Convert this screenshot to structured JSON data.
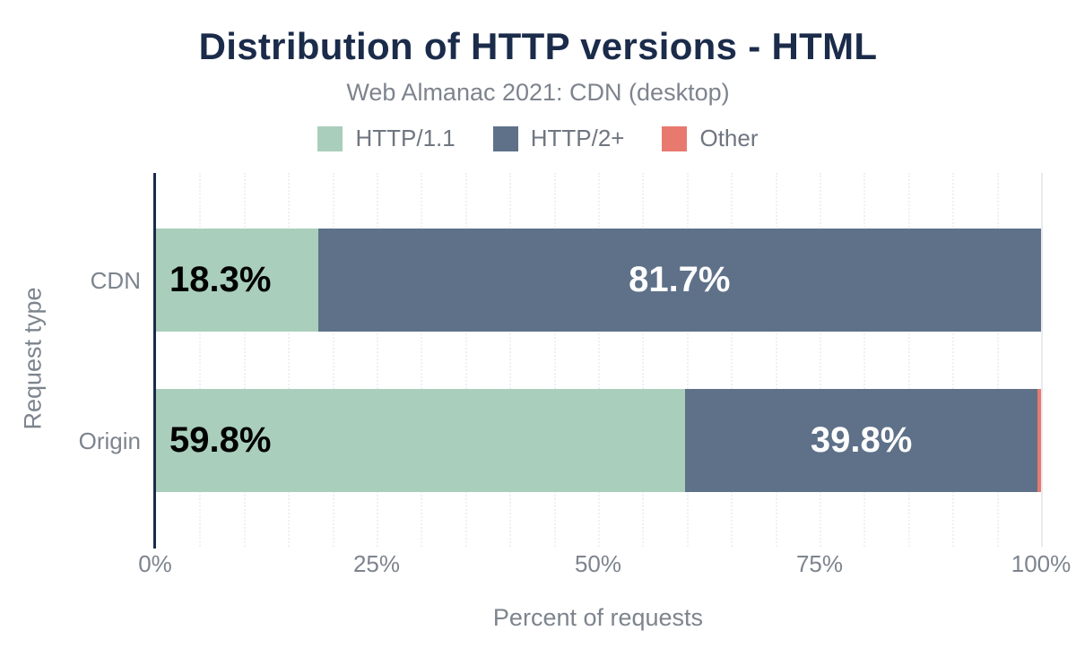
{
  "chart_data": {
    "type": "bar",
    "orientation": "horizontal",
    "stacked": true,
    "title": "Distribution of HTTP versions - HTML",
    "subtitle": "Web Almanac 2021: CDN (desktop)",
    "xlabel": "Percent of requests",
    "ylabel": "Request type",
    "categories": [
      "CDN",
      "Origin"
    ],
    "series": [
      {
        "name": "HTTP/1.1",
        "color": "#a9cebc",
        "values": [
          18.3,
          59.8
        ]
      },
      {
        "name": "HTTP/2+",
        "color": "#5e7189",
        "values": [
          81.7,
          39.8
        ]
      },
      {
        "name": "Other",
        "color": "#e8796f",
        "values": [
          0.0,
          0.4
        ]
      }
    ],
    "bar_labels": [
      [
        "18.3%",
        "81.7%",
        ""
      ],
      [
        "59.8%",
        "39.8%",
        ""
      ]
    ],
    "xlim": [
      0,
      100
    ],
    "x_ticks": [
      {
        "label": "0%",
        "pct": 0
      },
      {
        "label": "25%",
        "pct": 25
      },
      {
        "label": "50%",
        "pct": 50
      },
      {
        "label": "75%",
        "pct": 75
      },
      {
        "label": "100%",
        "pct": 100
      }
    ],
    "grid": {
      "on": true,
      "vertical_every_pct": 5
    },
    "legend_position": "top"
  },
  "colors": {
    "background": "#ffffff",
    "title_text": "#1b2b4a",
    "axis_line": "#1b2b4a",
    "muted_text": "#7d848e",
    "legend_text": "#6f7680",
    "gridline": "#eef0f4",
    "gridline_major": "#e8eaef",
    "label_on_light": "#000000",
    "label_on_dark": "#ffffff"
  }
}
